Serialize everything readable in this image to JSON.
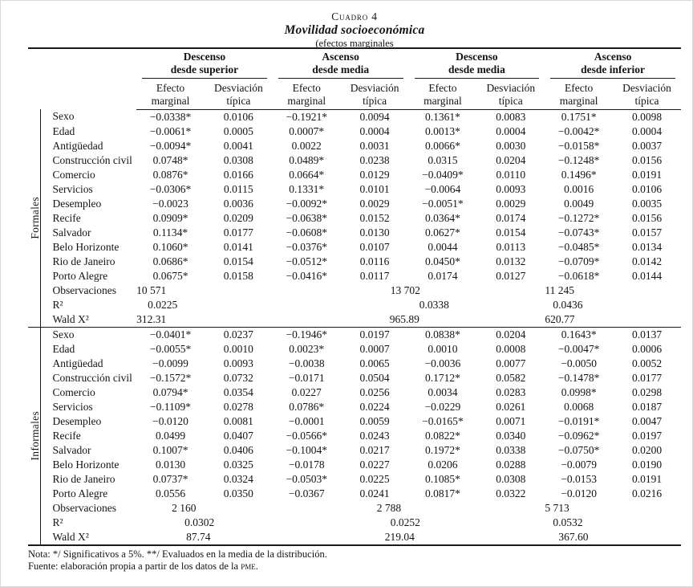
{
  "title": {
    "kicker": "Cuadro 4",
    "main": "Movilidad socioeconómica",
    "sub": "(efectos marginales"
  },
  "table": {
    "groups": [
      {
        "line1": "Descenso",
        "line2": "desde superior"
      },
      {
        "line1": "Ascenso",
        "line2": "desde media"
      },
      {
        "line1": "Descenso",
        "line2": "desde media"
      },
      {
        "line1": "Ascenso",
        "line2": "desde inferior"
      }
    ],
    "subheaders": {
      "effect": [
        "Efecto",
        "marginal"
      ],
      "sd": [
        "Desviación",
        "típica"
      ]
    },
    "sections": [
      {
        "label": "Formales",
        "rows": [
          {
            "var": "Sexo",
            "values": [
              "−0.0338*",
              "0.0106",
              "−0.1921*",
              "0.0094",
              "0.1361*",
              "0.0083",
              "0.1751*",
              "0.0098"
            ]
          },
          {
            "var": "Edad",
            "values": [
              "−0.0061*",
              "0.0005",
              "0.0007*",
              "0.0004",
              "0.0013*",
              "0.0004",
              "−0.0042*",
              "0.0004"
            ]
          },
          {
            "var": "Antigüedad",
            "values": [
              "−0.0094*",
              "0.0041",
              "0.0022",
              "0.0031",
              "0.0066*",
              "0.0030",
              "−0.0158*",
              "0.0037"
            ]
          },
          {
            "var": "Construcción civil",
            "values": [
              "0.0748*",
              "0.0308",
              "0.0489*",
              "0.0238",
              "0.0315",
              "0.0204",
              "−0.1248*",
              "0.0156"
            ]
          },
          {
            "var": "Comercio",
            "values": [
              "0.0876*",
              "0.0166",
              "0.0664*",
              "0.0129",
              "−0.0409*",
              "0.0110",
              "0.1496*",
              "0.0191"
            ]
          },
          {
            "var": "Servicios",
            "values": [
              "−0.0306*",
              "0.0115",
              "0.1331*",
              "0.0101",
              "−0.0064",
              "0.0093",
              "0.0016",
              "0.0106"
            ]
          },
          {
            "var": "Desempleo",
            "values": [
              "−0.0023",
              "0.0036",
              "−0.0092*",
              "0.0029",
              "−0.0051*",
              "0.0029",
              "0.0049",
              "0.0035"
            ]
          },
          {
            "var": "Recife",
            "values": [
              "0.0909*",
              "0.0209",
              "−0.0638*",
              "0.0152",
              "0.0364*",
              "0.0174",
              "−0.1272*",
              "0.0156"
            ]
          },
          {
            "var": "Salvador",
            "values": [
              "0.1134*",
              "0.0177",
              "−0.0608*",
              "0.0130",
              "0.0627*",
              "0.0154",
              "−0.0743*",
              "0.0157"
            ]
          },
          {
            "var": "Belo Horizonte",
            "values": [
              "0.1060*",
              "0.0141",
              "−0.0376*",
              "0.0107",
              "0.0044",
              "0.0113",
              "−0.0485*",
              "0.0134"
            ]
          },
          {
            "var": "Rio de Janeiro",
            "values": [
              "0.0686*",
              "0.0154",
              "−0.0512*",
              "0.0116",
              "0.0450*",
              "0.0132",
              "−0.0709*",
              "0.0142"
            ]
          },
          {
            "var": "Porto Alegre",
            "values": [
              "0.0675*",
              "0.0158",
              "−0.0416*",
              "0.0117",
              "0.0174",
              "0.0127",
              "−0.0618*",
              "0.0144"
            ]
          }
        ],
        "stats": [
          {
            "var": "Observaciones",
            "values": [
              "10 571",
              "13 702",
              "11 245"
            ]
          },
          {
            "var": "R²",
            "values": [
              "0.0225",
              "0.0338",
              "0.0436"
            ]
          },
          {
            "var": "Wald X²",
            "values": [
              "312.31",
              "965.89",
              "620.77"
            ]
          }
        ]
      },
      {
        "label": "Informales",
        "rows": [
          {
            "var": "Sexo",
            "values": [
              "−0.0401*",
              "0.0237",
              "−0.1946*",
              "0.0197",
              "0.0838*",
              "0.0204",
              "0.1643*",
              "0.0137"
            ]
          },
          {
            "var": "Edad",
            "values": [
              "−0.0055*",
              "0.0010",
              "0.0023*",
              "0.0007",
              "0.0010",
              "0.0008",
              "−0.0047*",
              "0.0006"
            ]
          },
          {
            "var": "Antigüedad",
            "values": [
              "−0.0099",
              "0.0093",
              "−0.0038",
              "0.0065",
              "−0.0036",
              "0.0077",
              "−0.0050",
              "0.0052"
            ]
          },
          {
            "var": "Construcción civil",
            "values": [
              "−0.1572*",
              "0.0732",
              "−0.0171",
              "0.0504",
              "0.1712*",
              "0.0582",
              "−0.1478*",
              "0.0177"
            ]
          },
          {
            "var": "Comercio",
            "values": [
              "0.0794*",
              "0.0354",
              "0.0227",
              "0.0256",
              "0.0034",
              "0.0283",
              "0.0998*",
              "0.0298"
            ]
          },
          {
            "var": "Servicios",
            "values": [
              "−0.1109*",
              "0.0278",
              "0.0786*",
              "0.0224",
              "−0.0229",
              "0.0261",
              "0.0068",
              "0.0187"
            ]
          },
          {
            "var": "Desempleo",
            "values": [
              "−0.0120",
              "0.0081",
              "−0.0001",
              "0.0059",
              "−0.0165*",
              "0.0071",
              "−0.0191*",
              "0.0047"
            ]
          },
          {
            "var": "Recife",
            "values": [
              "0.0499",
              "0.0407",
              "−0.0566*",
              "0.0243",
              "0.0822*",
              "0.0340",
              "−0.0962*",
              "0.0197"
            ]
          },
          {
            "var": "Salvador",
            "values": [
              "0.1007*",
              "0.0406",
              "−0.1004*",
              "0.0217",
              "0.1972*",
              "0.0338",
              "−0.0750*",
              "0.0200"
            ]
          },
          {
            "var": "Belo Horizonte",
            "values": [
              "0.0130",
              "0.0325",
              "−0.0178",
              "0.0227",
              "0.0206",
              "0.0288",
              "−0.0079",
              "0.0190"
            ]
          },
          {
            "var": "Rio de Janeiro",
            "values": [
              "0.0737*",
              "0.0324",
              "−0.0503*",
              "0.0225",
              "0.1085*",
              "0.0308",
              "−0.0153",
              "0.0191"
            ]
          },
          {
            "var": "Porto Alegre",
            "values": [
              "0.0556",
              "0.0350",
              "−0.0367",
              "0.0241",
              "0.0817*",
              "0.0322",
              "−0.0120",
              "0.0216"
            ]
          }
        ],
        "stats": [
          {
            "var": "Observaciones",
            "values": [
              "2 160",
              "2 788",
              "5 713"
            ]
          },
          {
            "var": "R²",
            "values": [
              "0.0302",
              "0.0252",
              "0.0532"
            ]
          },
          {
            "var": "Wald X²",
            "values": [
              "87.74",
              "219.04",
              "367.60"
            ]
          }
        ]
      }
    ]
  },
  "notes": {
    "nota": "Nota: */ Significativos a 5%. **/ Evaluados en la media de la distribución.",
    "fuente_prefix": "Fuente: elaboración propia a partir de los datos de la ",
    "fuente_sc": "pme",
    "fuente_suffix": "."
  }
}
